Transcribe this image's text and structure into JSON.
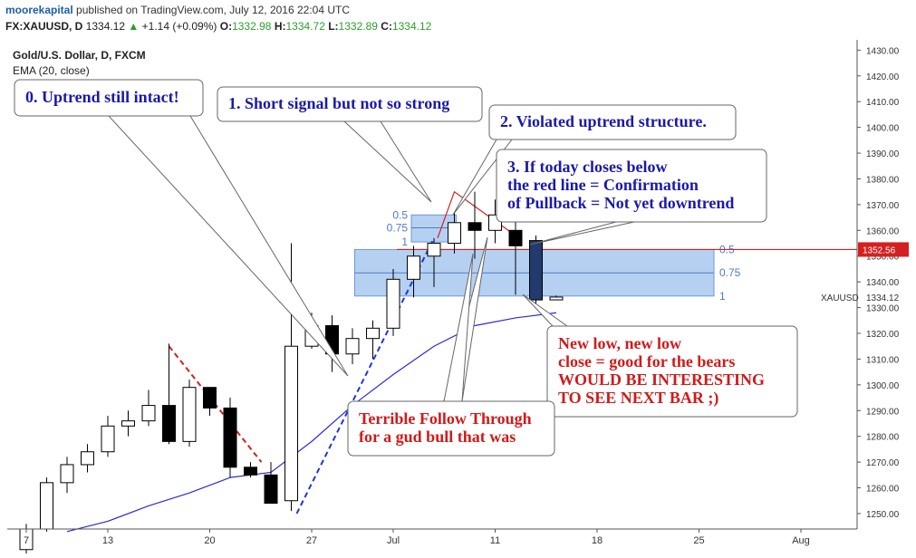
{
  "header": {
    "user": "moorekapital",
    "published": "published on TradingView.com, July 12, 2016 22:04 UTC",
    "symbol": "FX:XAUUSD, D",
    "last": "1334.12",
    "change": "+1.14 (+0.09%)",
    "o_label": "O:",
    "o": "1332.98",
    "h_label": "H:",
    "h": "1334.72",
    "l_label": "L:",
    "l": "1332.89",
    "c_label": "C:",
    "c": "1334.12"
  },
  "chart_title": "Gold/U.S. Dollar, D, FXCM",
  "indicator_label": "EMA (20, close)",
  "colors": {
    "ema": "#2b2bd4",
    "fib_zone": "#a9c8f0",
    "red_line": "#d42020",
    "callout_blue": "#1a1aa8",
    "callout_red": "#d01a1a",
    "price_label_bg": "#d42020",
    "price_label_text": "#ffffff"
  },
  "chart_data": {
    "type": "candlestick",
    "ylim": [
      1244,
      1434
    ],
    "y_ticks": [
      "1250.00",
      "1260.00",
      "1270.00",
      "1280.00",
      "1290.00",
      "1300.00",
      "1310.00",
      "1320.00",
      "1330.00",
      "1340.00",
      "1350.00",
      "1360.00",
      "1370.00",
      "1380.00",
      "1390.00",
      "1400.00",
      "1410.00",
      "1420.00",
      "1430.00"
    ],
    "x_ticks": [
      {
        "label": "7",
        "i": 0
      },
      {
        "label": "13",
        "i": 4
      },
      {
        "label": "20",
        "i": 9
      },
      {
        "label": "27",
        "i": 14
      },
      {
        "label": "Jul",
        "i": 18
      },
      {
        "label": "11",
        "i": 23
      },
      {
        "label": "18",
        "i": 28
      },
      {
        "label": "25",
        "i": 33
      },
      {
        "label": "Aug",
        "i": 38
      }
    ],
    "candles": [
      {
        "o": 1236,
        "h": 1246,
        "l": 1232,
        "c": 1244
      },
      {
        "o": 1244,
        "h": 1264,
        "l": 1243,
        "c": 1262
      },
      {
        "o": 1262,
        "h": 1272,
        "l": 1258,
        "c": 1269
      },
      {
        "o": 1269,
        "h": 1277,
        "l": 1266,
        "c": 1274
      },
      {
        "o": 1274,
        "h": 1288,
        "l": 1272,
        "c": 1284
      },
      {
        "o": 1284,
        "h": 1290,
        "l": 1280,
        "c": 1286
      },
      {
        "o": 1286,
        "h": 1298,
        "l": 1284,
        "c": 1292
      },
      {
        "o": 1292,
        "h": 1316,
        "l": 1277,
        "c": 1278
      },
      {
        "o": 1278,
        "h": 1302,
        "l": 1276,
        "c": 1299
      },
      {
        "o": 1299,
        "h": 1298,
        "l": 1288,
        "c": 1291
      },
      {
        "o": 1291,
        "h": 1295,
        "l": 1264,
        "c": 1268
      },
      {
        "o": 1268,
        "h": 1270,
        "l": 1264,
        "c": 1265
      },
      {
        "o": 1265,
        "h": 1270,
        "l": 1254,
        "c": 1254
      },
      {
        "o": 1255,
        "h": 1355,
        "l": 1251,
        "c": 1315
      },
      {
        "o": 1315,
        "h": 1328,
        "l": 1314,
        "c": 1323
      },
      {
        "o": 1323,
        "h": 1327,
        "l": 1305,
        "c": 1312
      },
      {
        "o": 1312,
        "h": 1322,
        "l": 1308,
        "c": 1318
      },
      {
        "o": 1318,
        "h": 1325,
        "l": 1310,
        "c": 1322
      },
      {
        "o": 1322,
        "h": 1345,
        "l": 1319,
        "c": 1341
      },
      {
        "o": 1341,
        "h": 1354,
        "l": 1334,
        "c": 1350
      },
      {
        "o": 1350,
        "h": 1357,
        "l": 1338,
        "c": 1355
      },
      {
        "o": 1355,
        "h": 1367,
        "l": 1351,
        "c": 1363
      },
      {
        "o": 1363,
        "h": 1375,
        "l": 1349,
        "c": 1360
      },
      {
        "o": 1360,
        "h": 1372,
        "l": 1355,
        "c": 1366
      },
      {
        "o": 1360,
        "h": 1375,
        "l": 1335,
        "c": 1354
      },
      {
        "o": 1356,
        "h": 1358,
        "l": 1331,
        "c": 1333
      },
      {
        "o": 1333,
        "h": 1334.7,
        "l": 1332.9,
        "c": 1334.1
      }
    ],
    "ema": [
      {
        "i": 2,
        "v": 1243
      },
      {
        "i": 4,
        "v": 1247
      },
      {
        "i": 6,
        "v": 1253
      },
      {
        "i": 8,
        "v": 1258
      },
      {
        "i": 10,
        "v": 1264
      },
      {
        "i": 12,
        "v": 1266
      },
      {
        "i": 14,
        "v": 1278
      },
      {
        "i": 16,
        "v": 1292
      },
      {
        "i": 18,
        "v": 1304
      },
      {
        "i": 20,
        "v": 1315
      },
      {
        "i": 22,
        "v": 1323
      },
      {
        "i": 24,
        "v": 1326
      },
      {
        "i": 26,
        "v": 1328
      }
    ],
    "fib_big": {
      "top": 1352.56,
      "mid": 1343.5,
      "bottom": 1334.5,
      "start_i": 17,
      "end_i": 34
    },
    "fib_small": {
      "top": 1366,
      "mid": 1361,
      "bottom": 1355.5,
      "start_i": 18,
      "end_i": 21
    },
    "red_horizontal": 1352.56,
    "price_label": "1352.56",
    "last_price_label": "1334.12",
    "symbol_label": "XAUUSD",
    "fib_labels": {
      "l05": "0.5",
      "l075": "0.75",
      "l1": "1"
    }
  },
  "callouts": [
    {
      "text_lines": [
        "0. Uptrend still intact!"
      ],
      "color": "callout_blue"
    },
    {
      "text_lines": [
        "1. Short signal but not so strong"
      ],
      "color": "callout_blue"
    },
    {
      "text_lines": [
        "2. Violated uptrend structure."
      ],
      "color": "callout_blue"
    },
    {
      "text_lines": [
        "3. If today closes below",
        "the red line = Confirmation",
        "of Pullback = Not yet downtrend"
      ],
      "color": "callout_blue"
    },
    {
      "text_lines": [
        "New low, new low",
        "close = good for the bears",
        "WOULD BE INTERESTING",
        "TO SEE NEXT BAR ;)"
      ],
      "color": "callout_red"
    },
    {
      "text_lines": [
        "Terrible Follow Through",
        "for a gud bull that was"
      ],
      "color": "callout_red"
    }
  ]
}
